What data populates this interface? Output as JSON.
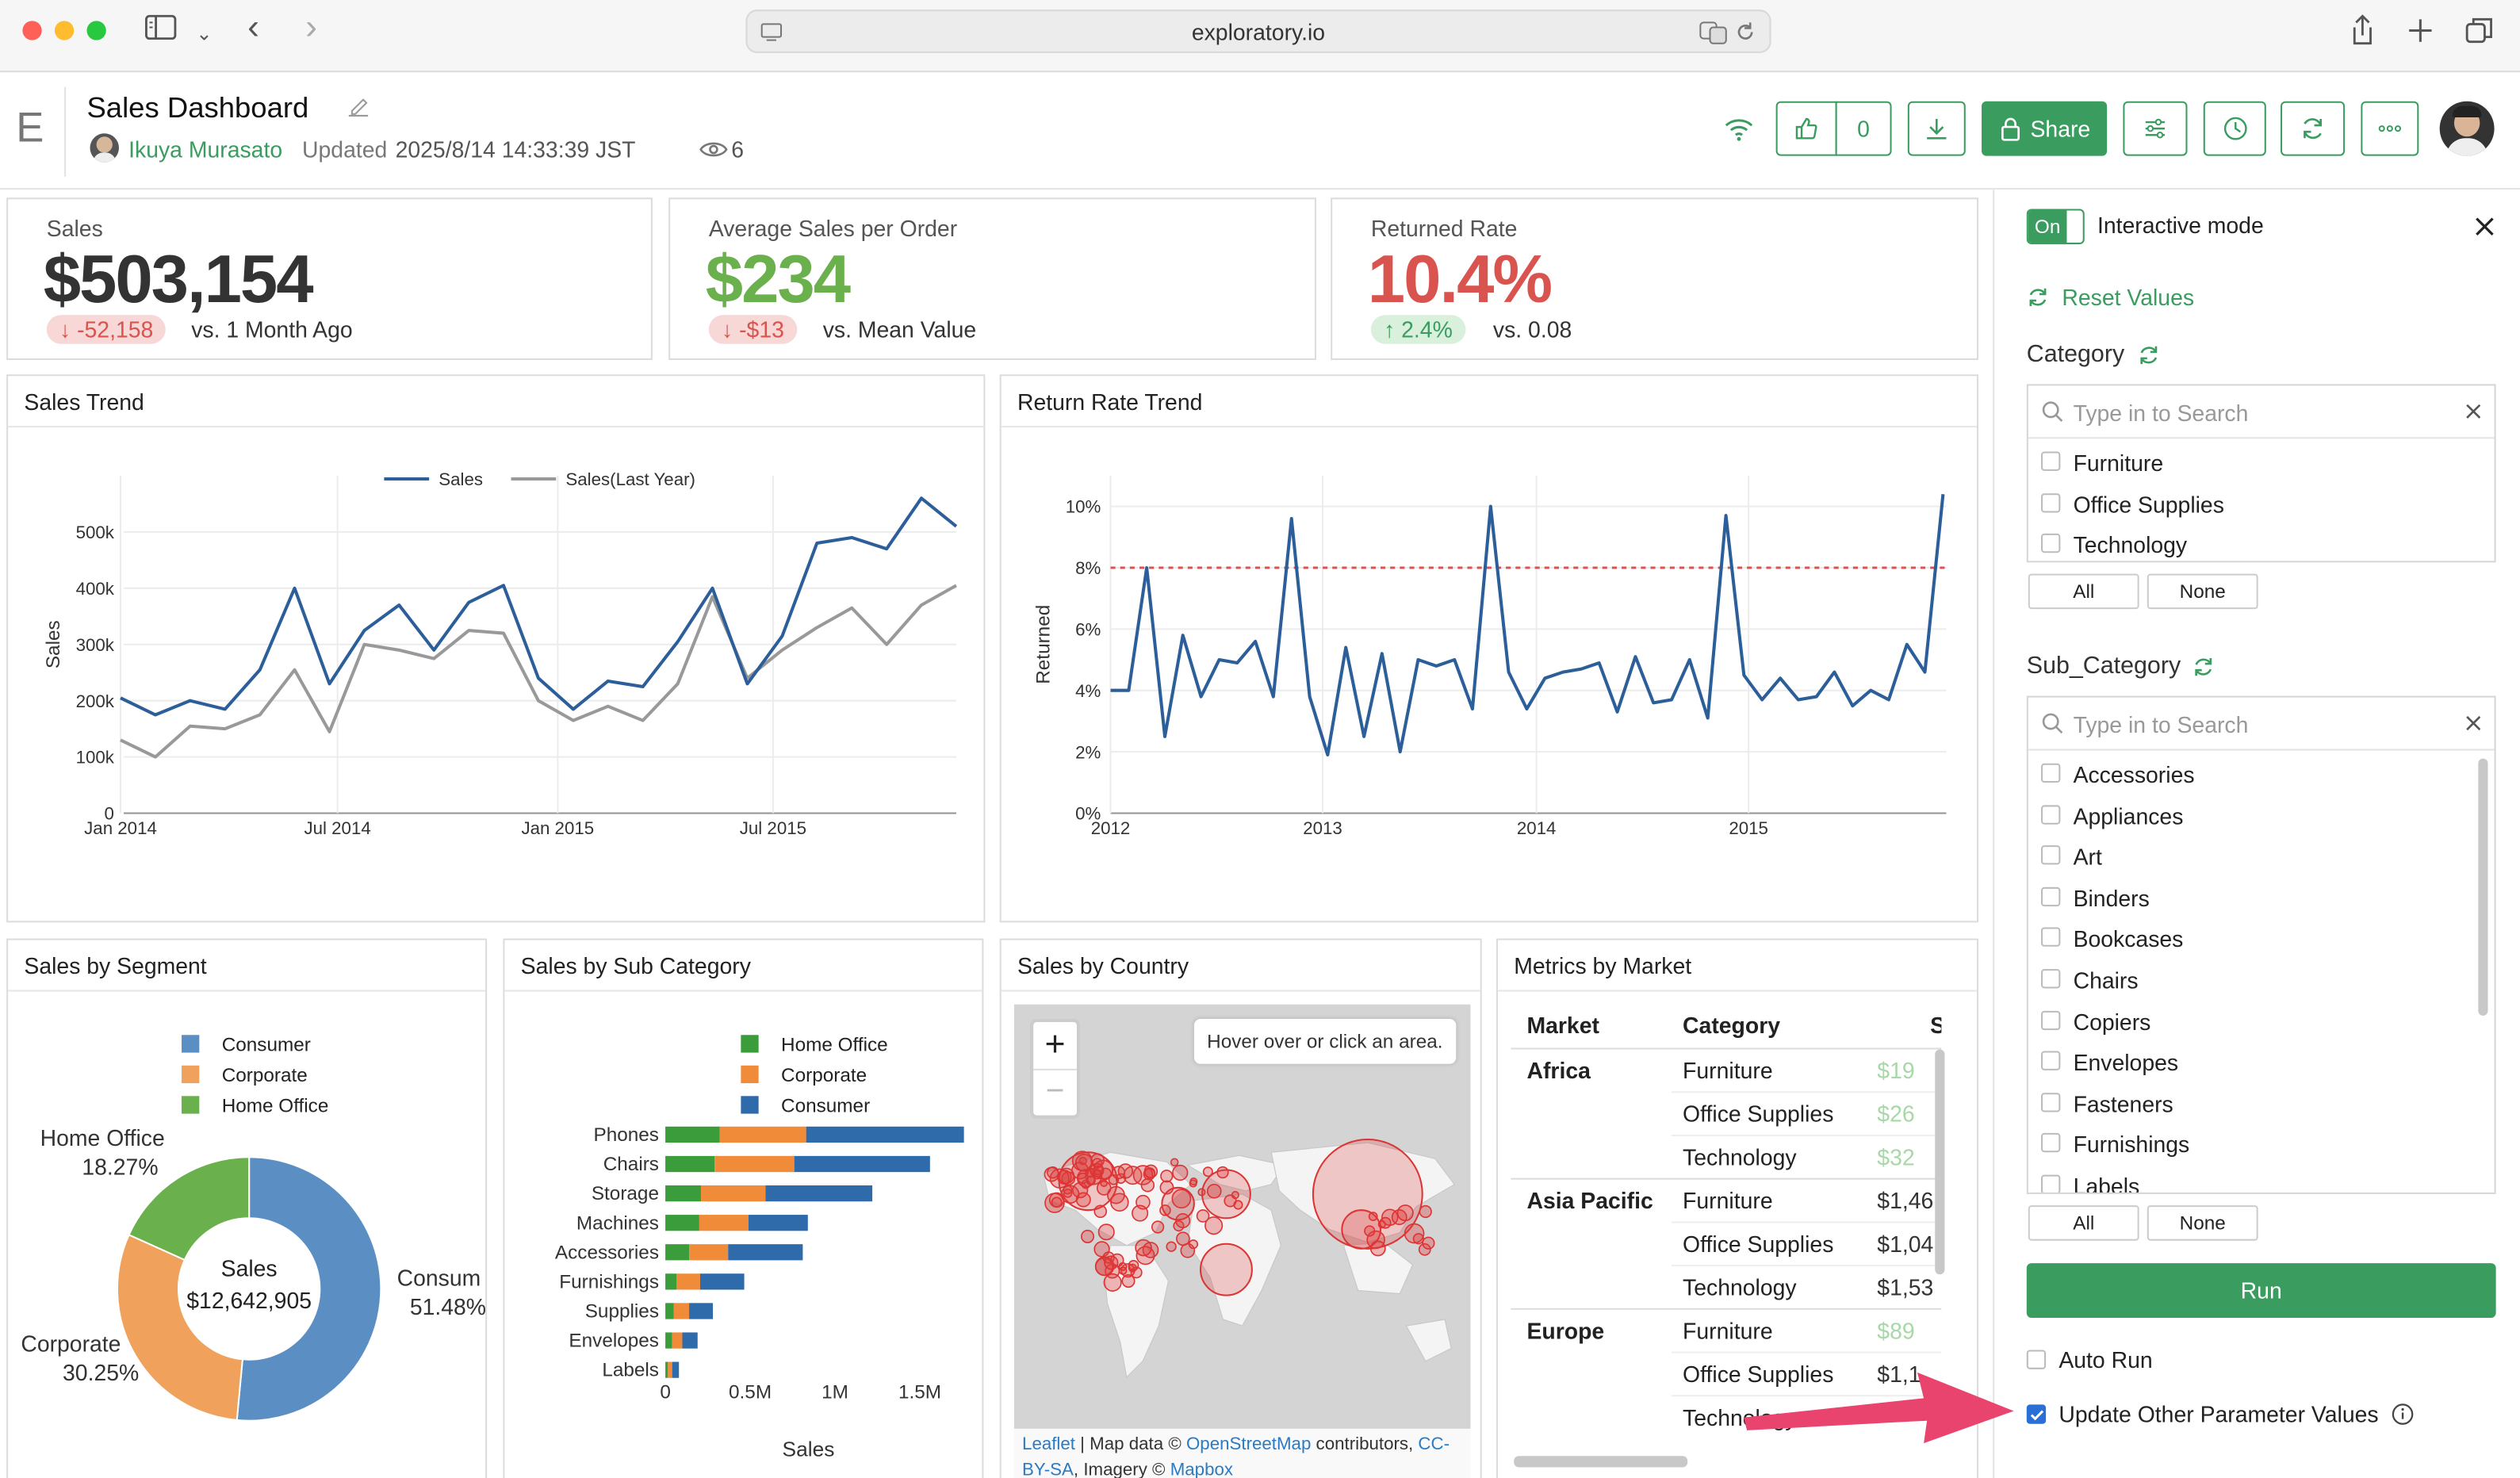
{
  "browser": {
    "url": "exploratory.io"
  },
  "header": {
    "logo": "E",
    "title": "Sales Dashboard",
    "author": "Ikuya Murasato",
    "updated_label": "Updated",
    "updated_value": "2025/8/14 14:33:39 JST",
    "views": "6",
    "likes": "0",
    "share_label": "Share"
  },
  "kpis": [
    {
      "label": "Sales",
      "value": "$503,154",
      "delta": "-52,158",
      "delta_dir": "down",
      "compare": "vs. 1 Month Ago",
      "color": "#333333"
    },
    {
      "label": "Average Sales per Order",
      "value": "$234",
      "delta": "-$13",
      "delta_dir": "down",
      "compare": "vs. Mean Value",
      "color": "#6ab04c"
    },
    {
      "label": "Returned Rate",
      "value": "10.4%",
      "delta": "2.4%",
      "delta_dir": "up",
      "compare": "vs. 0.08",
      "color": "#d9534f"
    }
  ],
  "panels": {
    "sales_trend": "Sales Trend",
    "return_rate_trend": "Return Rate Trend",
    "sales_by_segment": "Sales by Segment",
    "sales_by_subcategory": "Sales by Sub Category",
    "sales_by_country": "Sales by Country",
    "metrics_by_market": "Metrics by Market"
  },
  "chart_data": [
    {
      "type": "line",
      "title": "Sales Trend",
      "ylabel": "Sales",
      "xlabel": "",
      "ylim": [
        0,
        600000
      ],
      "y_ticks": [
        "0",
        "100k",
        "200k",
        "300k",
        "400k",
        "500k"
      ],
      "x_ticks": [
        "Jan 2014",
        "Jul 2014",
        "Jan 2015",
        "Jul 2015"
      ],
      "legend_position": "top",
      "grid": true,
      "series": [
        {
          "name": "Sales",
          "color": "#2c5f9a",
          "values": [
            205000,
            175000,
            200000,
            185000,
            255000,
            400000,
            230000,
            325000,
            370000,
            290000,
            375000,
            405000,
            240000,
            185000,
            235000,
            225000,
            305000,
            400000,
            230000,
            315000,
            480000,
            490000,
            470000,
            560000,
            510000
          ]
        },
        {
          "name": "Sales(Last Year)",
          "color": "#999999",
          "values": [
            130000,
            100000,
            155000,
            150000,
            175000,
            255000,
            145000,
            300000,
            290000,
            275000,
            325000,
            320000,
            200000,
            165000,
            190000,
            165000,
            230000,
            385000,
            240000,
            290000,
            330000,
            365000,
            300000,
            370000,
            405000
          ]
        }
      ]
    },
    {
      "type": "line",
      "title": "Return Rate Trend",
      "ylabel": "Returned",
      "xlabel": "",
      "ylim": [
        0,
        11
      ],
      "y_ticks": [
        "0%",
        "2%",
        "4%",
        "6%",
        "8%",
        "10%"
      ],
      "x_ticks": [
        "2012",
        "2013",
        "2014",
        "2015"
      ],
      "reference_line": 8,
      "reference_color": "#d9534f",
      "series": [
        {
          "name": "Returned",
          "color": "#2c5f9a",
          "values": [
            4.0,
            4.0,
            8.0,
            2.5,
            5.8,
            3.8,
            5.0,
            4.9,
            5.6,
            3.8,
            9.6,
            3.8,
            1.9,
            5.4,
            2.5,
            5.2,
            2.0,
            5.0,
            4.8,
            5.0,
            3.4,
            10.0,
            4.6,
            3.4,
            4.4,
            4.6,
            4.7,
            4.9,
            3.3,
            5.1,
            3.6,
            3.7,
            5.0,
            3.1,
            9.7,
            4.5,
            3.7,
            4.4,
            3.7,
            3.8,
            4.6,
            3.5,
            4.0,
            3.7,
            5.5,
            4.6,
            10.4
          ]
        }
      ]
    },
    {
      "type": "pie",
      "title": "Sales by Segment",
      "center_label": "Sales",
      "center_value": "$12,642,905",
      "legend": [
        "Consumer",
        "Corporate",
        "Home Office"
      ],
      "slices": [
        {
          "name": "Consumer",
          "value": 51.48,
          "label": "Consum",
          "pct": "51.48%",
          "color": "#5b8fc4"
        },
        {
          "name": "Corporate",
          "value": 30.25,
          "label": "Corporate",
          "pct": "30.25%",
          "color": "#f0a15c"
        },
        {
          "name": "Home Office",
          "value": 18.27,
          "label": "Home Office",
          "pct": "18.27%",
          "color": "#6ab04c"
        }
      ]
    },
    {
      "type": "bar",
      "orientation": "horizontal",
      "stacked": true,
      "title": "Sales by Sub Category",
      "xlabel": "Sales",
      "x_ticks": [
        "0",
        "0.5M",
        "1M",
        "1.5M"
      ],
      "xlim": [
        0,
        1800000
      ],
      "legend": [
        "Home Office",
        "Corporate",
        "Consumer"
      ],
      "categories": [
        "Phones",
        "Chairs",
        "Storage",
        "Machines",
        "Accessories",
        "Furnishings",
        "Supplies",
        "Envelopes",
        "Labels"
      ],
      "series": [
        {
          "name": "Home Office",
          "color": "#3a9c3a",
          "values": [
            320000,
            290000,
            210000,
            200000,
            140000,
            65000,
            50000,
            40000,
            15000
          ]
        },
        {
          "name": "Corporate",
          "color": "#f08b3a",
          "values": [
            510000,
            470000,
            380000,
            290000,
            230000,
            140000,
            90000,
            60000,
            25000
          ]
        },
        {
          "name": "Consumer",
          "color": "#2f6aab",
          "values": [
            930000,
            800000,
            630000,
            350000,
            440000,
            260000,
            140000,
            90000,
            40000
          ]
        }
      ]
    }
  ],
  "map": {
    "tooltip": "Hover over or click an area.",
    "zoom_in": "+",
    "zoom_out": "−",
    "attribution": [
      {
        "text": "Leaflet",
        "link": true
      },
      {
        "text": " | Map data © ",
        "link": false
      },
      {
        "text": "OpenStreetMap",
        "link": true
      },
      {
        "text": " contributors, ",
        "link": false
      },
      {
        "text": "CC-BY-SA",
        "link": true
      },
      {
        "text": ", Imagery © ",
        "link": false
      },
      {
        "text": "Mapbox",
        "link": true
      }
    ]
  },
  "metrics_table": {
    "columns": [
      "Market",
      "Category",
      "Sa"
    ],
    "groups": [
      {
        "market": "Africa",
        "rows": [
          {
            "category": "Furniture",
            "value": "$19"
          },
          {
            "category": "Office Supplies",
            "value": "$26"
          },
          {
            "category": "Technology",
            "value": "$32"
          }
        ]
      },
      {
        "market": "Asia Pacific",
        "rows": [
          {
            "category": "Furniture",
            "value": "$1,46"
          },
          {
            "category": "Office Supplies",
            "value": "$1,04"
          },
          {
            "category": "Technology",
            "value": "$1,53"
          }
        ]
      },
      {
        "market": "Europe",
        "rows": [
          {
            "category": "Furniture",
            "value": "$89"
          },
          {
            "category": "Office Supplies",
            "value": "$1,1"
          },
          {
            "category": "Technology",
            "value": ""
          }
        ]
      }
    ]
  },
  "sidebar": {
    "toggle_label": "On",
    "interactive_mode": "Interactive mode",
    "reset_values": "Reset Values",
    "category": {
      "title": "Category",
      "placeholder": "Type in to Search",
      "options": [
        "Furniture",
        "Office Supplies",
        "Technology"
      ],
      "all": "All",
      "none": "None"
    },
    "sub_category": {
      "title": "Sub_Category",
      "placeholder": "Type in to Search",
      "options": [
        "Accessories",
        "Appliances",
        "Art",
        "Binders",
        "Bookcases",
        "Chairs",
        "Copiers",
        "Envelopes",
        "Fasteners",
        "Furnishings",
        "Labels"
      ],
      "all": "All",
      "none": "None"
    },
    "run_label": "Run",
    "auto_run": "Auto Run",
    "auto_run_checked": false,
    "update_other": "Update Other Parameter Values",
    "update_other_checked": true
  },
  "colors": {
    "accent": "#3a9c5f",
    "link": "#2a7bc4",
    "arrow": "#e8446e",
    "negative": "#d9534f",
    "positive": "#3a9c5f"
  }
}
